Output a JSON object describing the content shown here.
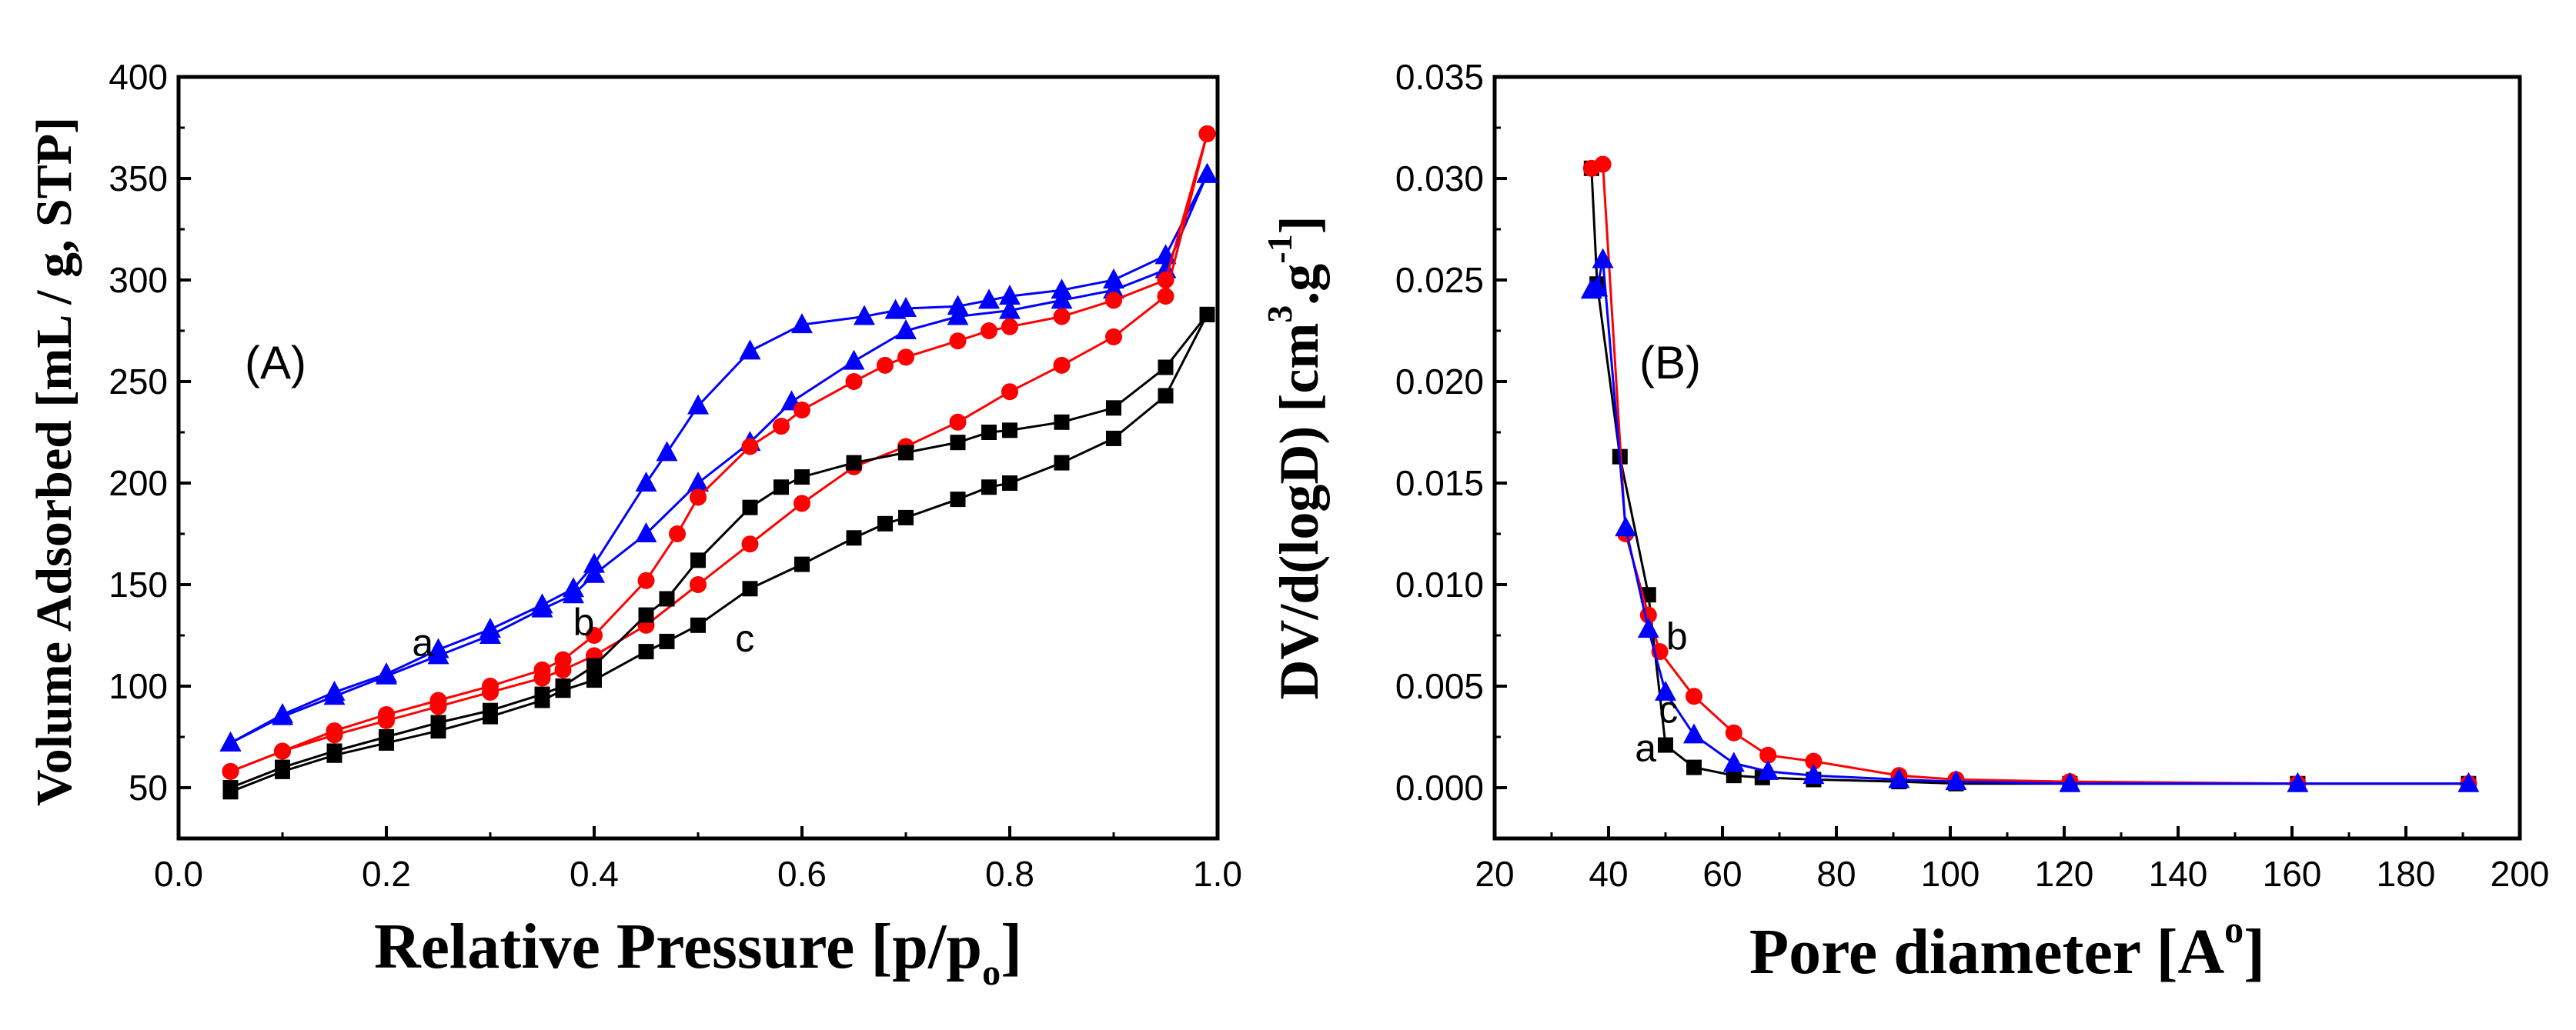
{
  "chart_data": [
    {
      "type": "line",
      "panel_label": "(A)",
      "xlabel": "Relative Pressure [p/p",
      "xlabel_sub": "o",
      "xlabel_close": "]",
      "ylabel": "Volume Adsorbed [mL / g, STP]",
      "xlim": [
        0.0,
        1.0
      ],
      "ylim": [
        25,
        400
      ],
      "xticks": [
        "0.0",
        "0.2",
        "0.4",
        "0.6",
        "0.8",
        "1.0"
      ],
      "yticks": [
        "50",
        "100",
        "150",
        "200",
        "250",
        "300",
        "350",
        "400"
      ],
      "curve_labels": [
        {
          "text": "a",
          "x": 0.235,
          "y": 115
        },
        {
          "text": "b",
          "x": 0.39,
          "y": 125
        },
        {
          "text": "c",
          "x": 0.545,
          "y": 117
        }
      ],
      "series": [
        {
          "name": "a",
          "marker": "triangle",
          "color": "#0000ff",
          "adsorption": {
            "x": [
              0.05,
              0.1,
              0.15,
              0.2,
              0.25,
              0.3,
              0.35,
              0.38,
              0.4,
              0.45,
              0.5,
              0.55,
              0.59,
              0.65,
              0.7,
              0.75,
              0.8,
              0.85,
              0.9,
              0.95,
              0.99
            ],
            "y": [
              72,
              85,
              95,
              105,
              115,
              125,
              138,
              145,
              155,
              175,
              200,
              220,
              240,
              260,
              275,
              282,
              285,
              290,
              295,
              305,
              352
            ]
          },
          "desorption": {
            "x": [
              0.05,
              0.1,
              0.15,
              0.2,
              0.25,
              0.3,
              0.35,
              0.38,
              0.4,
              0.45,
              0.47,
              0.5,
              0.55,
              0.6,
              0.66,
              0.69,
              0.7,
              0.75,
              0.78,
              0.8,
              0.85,
              0.9,
              0.95,
              0.99
            ],
            "y": [
              72,
              86,
              97,
              106,
              118,
              128,
              140,
              148,
              160,
              200,
              215,
              238,
              265,
              278,
              282,
              285,
              286,
              287,
              290,
              292,
              295,
              300,
              312,
              352
            ]
          }
        },
        {
          "name": "b",
          "marker": "circle",
          "color": "#ff0000",
          "adsorption": {
            "x": [
              0.05,
              0.1,
              0.15,
              0.2,
              0.25,
              0.3,
              0.35,
              0.37,
              0.4,
              0.45,
              0.5,
              0.55,
              0.6,
              0.65,
              0.7,
              0.75,
              0.8,
              0.85,
              0.9,
              0.95,
              0.99
            ],
            "y": [
              58,
              68,
              76,
              83,
              90,
              97,
              104,
              108,
              115,
              130,
              150,
              170,
              190,
              208,
              218,
              230,
              245,
              258,
              272,
              292,
              372
            ]
          },
          "desorption": {
            "x": [
              0.05,
              0.1,
              0.15,
              0.2,
              0.25,
              0.3,
              0.35,
              0.37,
              0.4,
              0.45,
              0.48,
              0.5,
              0.55,
              0.58,
              0.6,
              0.65,
              0.68,
              0.7,
              0.75,
              0.78,
              0.8,
              0.85,
              0.9,
              0.95,
              0.99
            ],
            "y": [
              58,
              68,
              78,
              86,
              93,
              100,
              108,
              113,
              125,
              152,
              175,
              193,
              218,
              228,
              236,
              250,
              258,
              262,
              270,
              275,
              277,
              282,
              290,
              300,
              372
            ]
          }
        },
        {
          "name": "c",
          "marker": "square",
          "color": "#000000",
          "adsorption": {
            "x": [
              0.05,
              0.1,
              0.15,
              0.2,
              0.25,
              0.3,
              0.35,
              0.37,
              0.4,
              0.45,
              0.47,
              0.5,
              0.55,
              0.6,
              0.65,
              0.68,
              0.7,
              0.75,
              0.78,
              0.8,
              0.85,
              0.9,
              0.95,
              0.99
            ],
            "y": [
              48,
              58,
              66,
              72,
              78,
              85,
              93,
              98,
              103,
              117,
              122,
              130,
              148,
              160,
              173,
              180,
              183,
              192,
              198,
              200,
              210,
              222,
              243,
              283
            ]
          },
          "desorption": {
            "x": [
              0.05,
              0.1,
              0.15,
              0.2,
              0.25,
              0.3,
              0.35,
              0.37,
              0.4,
              0.45,
              0.47,
              0.5,
              0.55,
              0.58,
              0.6,
              0.65,
              0.7,
              0.75,
              0.78,
              0.8,
              0.85,
              0.9,
              0.95,
              0.99
            ],
            "y": [
              50,
              60,
              68,
              75,
              82,
              88,
              96,
              100,
              110,
              135,
              143,
              162,
              188,
              198,
              203,
              210,
              215,
              220,
              225,
              226,
              230,
              237,
              257,
              283
            ]
          }
        }
      ]
    },
    {
      "type": "line",
      "panel_label": "(B)",
      "xlabel": "Pore diameter [A",
      "xlabel_sup": "o",
      "xlabel_close": "]",
      "ylabel": "DV/d(logD) [cm",
      "ylabel_sup1": "3",
      "ylabel_mid": ".g",
      "ylabel_sup2": "-1",
      "ylabel_close": "]",
      "xlim": [
        20,
        200
      ],
      "ylim": [
        -0.0025,
        0.035
      ],
      "xticks": [
        "20",
        "40",
        "60",
        "80",
        "100",
        "120",
        "140",
        "160",
        "180",
        "200"
      ],
      "yticks": [
        "0.000",
        "0.005",
        "0.010",
        "0.015",
        "0.020",
        "0.025",
        "0.030",
        "0.035"
      ],
      "curve_labels": [
        {
          "text": "a",
          "x": 46.5,
          "y": 0.0013
        },
        {
          "text": "b",
          "x": 52,
          "y": 0.0068
        },
        {
          "text": "c",
          "x": 50.5,
          "y": 0.0032
        }
      ],
      "series": [
        {
          "name": "a",
          "marker": "square",
          "color": "#000000",
          "x": [
            37,
            38,
            42,
            47,
            50,
            55,
            62,
            67,
            76,
            91,
            101,
            121,
            161,
            191
          ],
          "y": [
            0.0305,
            0.0248,
            0.0163,
            0.0095,
            0.0021,
            0.001,
            0.0006,
            0.0005,
            0.0004,
            0.0003,
            0.0002,
            0.0002,
            0.0002,
            0.0002
          ]
        },
        {
          "name": "b",
          "marker": "circle",
          "color": "#ff0000",
          "x": [
            37,
            39,
            43,
            47,
            49,
            55,
            62,
            68,
            76,
            91,
            101,
            121,
            161,
            191
          ],
          "y": [
            0.0305,
            0.0307,
            0.0125,
            0.0085,
            0.0067,
            0.0045,
            0.0027,
            0.0016,
            0.0013,
            0.0006,
            0.0004,
            0.0003,
            0.0002,
            0.0002
          ]
        },
        {
          "name": "c",
          "marker": "triangle",
          "color": "#0000ff",
          "x": [
            37,
            38,
            39,
            43,
            47,
            50,
            55,
            62,
            68,
            76,
            91,
            101,
            121,
            161,
            191
          ],
          "y": [
            0.0245,
            0.0246,
            0.026,
            0.0128,
            0.0078,
            0.0047,
            0.0026,
            0.0012,
            0.0008,
            0.0006,
            0.0004,
            0.0003,
            0.0002,
            0.0002,
            0.0002
          ]
        }
      ]
    }
  ]
}
